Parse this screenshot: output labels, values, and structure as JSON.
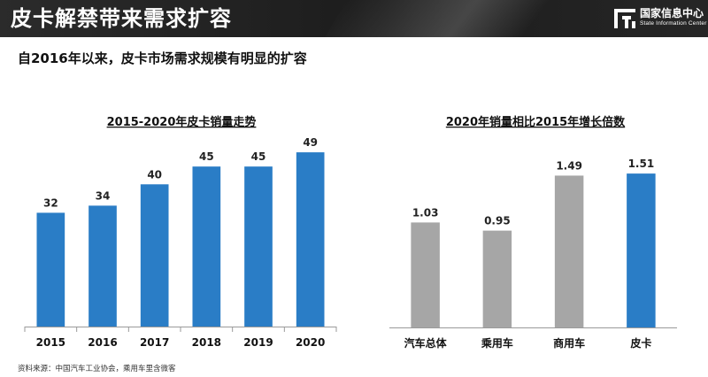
{
  "header": {
    "title": "皮卡解禁带来需求扩容",
    "logo_name": "国家信息中心",
    "logo_sub": "State Information Center"
  },
  "subtitle": "自2016年以来，皮卡市场需求规模有明显的扩容",
  "source": "资料来源：中国汽车工业协会，乘用车里含微客",
  "colors": {
    "blue": "#2a7dc6",
    "gray": "#a6a6a6",
    "header": "#222222"
  },
  "chart_data": [
    {
      "type": "bar",
      "title": "2015-2020年皮卡销量走势",
      "categories": [
        "2015",
        "2016",
        "2017",
        "2018",
        "2019",
        "2020"
      ],
      "values": [
        32,
        34,
        40,
        45,
        45,
        49
      ],
      "value_labels": [
        "32",
        "34",
        "40",
        "45",
        "45",
        "49"
      ],
      "bar_colors": [
        "#2a7dc6",
        "#2a7dc6",
        "#2a7dc6",
        "#2a7dc6",
        "#2a7dc6",
        "#2a7dc6"
      ],
      "ylim": [
        0,
        55
      ],
      "grid": false,
      "legend": "none"
    },
    {
      "type": "bar",
      "title": "2020年销量相比2015年增长倍数",
      "categories": [
        "汽车总体",
        "乘用车",
        "商用车",
        "皮卡"
      ],
      "values": [
        1.03,
        0.95,
        1.49,
        1.51
      ],
      "value_labels": [
        "1.03",
        "0.95",
        "1.49",
        "1.51"
      ],
      "bar_colors": [
        "#a6a6a6",
        "#a6a6a6",
        "#a6a6a6",
        "#2a7dc6"
      ],
      "ylim": [
        0,
        1.65
      ],
      "grid": false,
      "legend": "none"
    }
  ]
}
